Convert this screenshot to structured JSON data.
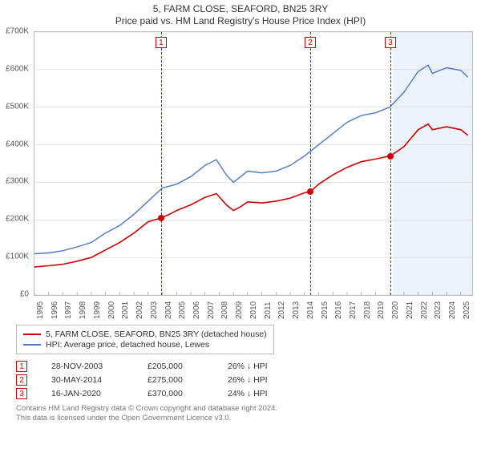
{
  "title1": "5, FARM CLOSE, SEAFORD, BN25 3RY",
  "title2": "Price paid vs. HM Land Registry's House Price Index (HPI)",
  "chart": {
    "type": "line",
    "x_start": 1995,
    "x_end": 2025.8,
    "x_ticks": [
      1995,
      1996,
      1997,
      1998,
      1999,
      2000,
      2001,
      2002,
      2003,
      2004,
      2005,
      2006,
      2007,
      2008,
      2009,
      2010,
      2011,
      2012,
      2013,
      2014,
      2015,
      2016,
      2017,
      2018,
      2019,
      2020,
      2021,
      2022,
      2023,
      2024,
      2025
    ],
    "y_min": 0,
    "y_max": 700000,
    "y_ticks": [
      "£0",
      "£100K",
      "£200K",
      "£300K",
      "£400K",
      "£500K",
      "£600K",
      "£700K"
    ],
    "grid_color": "#cccccc",
    "background": "#ffffff",
    "band": {
      "start": 2020.2,
      "end": 2025.8,
      "color": "rgba(70,130,200,0.10)"
    },
    "markers": [
      {
        "n": "1",
        "x": 2003.91,
        "y": 205000,
        "line_color": "#cc0000"
      },
      {
        "n": "2",
        "x": 2014.41,
        "y": 275000,
        "line_color": "#cc0000"
      },
      {
        "n": "3",
        "x": 2020.04,
        "y": 370000,
        "line_color": "#cc0000"
      }
    ],
    "series": [
      {
        "name": "property",
        "label": "5, FARM CLOSE, SEAFORD, BN25 3RY (detached house)",
        "color": "#cc0000",
        "width": 1.6,
        "points": [
          [
            1995,
            75000
          ],
          [
            1996,
            78000
          ],
          [
            1997,
            82000
          ],
          [
            1998,
            90000
          ],
          [
            1999,
            100000
          ],
          [
            2000,
            120000
          ],
          [
            2001,
            140000
          ],
          [
            2002,
            165000
          ],
          [
            2003,
            195000
          ],
          [
            2003.91,
            205000
          ],
          [
            2004.5,
            215000
          ],
          [
            2005,
            225000
          ],
          [
            2006,
            240000
          ],
          [
            2007,
            260000
          ],
          [
            2007.8,
            270000
          ],
          [
            2008.5,
            240000
          ],
          [
            2009,
            225000
          ],
          [
            2009.5,
            235000
          ],
          [
            2010,
            248000
          ],
          [
            2011,
            245000
          ],
          [
            2012,
            250000
          ],
          [
            2013,
            258000
          ],
          [
            2014,
            272000
          ],
          [
            2014.41,
            275000
          ],
          [
            2015,
            295000
          ],
          [
            2016,
            320000
          ],
          [
            2017,
            340000
          ],
          [
            2018,
            355000
          ],
          [
            2019,
            362000
          ],
          [
            2020,
            370000
          ],
          [
            2020.04,
            370000
          ],
          [
            2021,
            395000
          ],
          [
            2022,
            440000
          ],
          [
            2022.7,
            455000
          ],
          [
            2023,
            440000
          ],
          [
            2024,
            448000
          ],
          [
            2025,
            440000
          ],
          [
            2025.5,
            425000
          ]
        ]
      },
      {
        "name": "hpi",
        "label": "HPI: Average price, detached house, Lewes",
        "color": "#4a78c4",
        "width": 1.4,
        "points": [
          [
            1995,
            110000
          ],
          [
            1996,
            112000
          ],
          [
            1997,
            118000
          ],
          [
            1998,
            128000
          ],
          [
            1999,
            140000
          ],
          [
            2000,
            165000
          ],
          [
            2001,
            185000
          ],
          [
            2002,
            215000
          ],
          [
            2003,
            250000
          ],
          [
            2004,
            285000
          ],
          [
            2005,
            295000
          ],
          [
            2006,
            315000
          ],
          [
            2007,
            345000
          ],
          [
            2007.8,
            360000
          ],
          [
            2008.5,
            320000
          ],
          [
            2009,
            300000
          ],
          [
            2009.5,
            315000
          ],
          [
            2010,
            330000
          ],
          [
            2011,
            325000
          ],
          [
            2012,
            330000
          ],
          [
            2013,
            345000
          ],
          [
            2014,
            370000
          ],
          [
            2015,
            400000
          ],
          [
            2016,
            430000
          ],
          [
            2017,
            460000
          ],
          [
            2018,
            478000
          ],
          [
            2019,
            485000
          ],
          [
            2020,
            500000
          ],
          [
            2021,
            540000
          ],
          [
            2022,
            595000
          ],
          [
            2022.7,
            612000
          ],
          [
            2023,
            590000
          ],
          [
            2024,
            605000
          ],
          [
            2025,
            598000
          ],
          [
            2025.5,
            580000
          ]
        ]
      }
    ]
  },
  "legend": [
    {
      "color": "#cc0000",
      "text": "5, FARM CLOSE, SEAFORD, BN25 3RY (detached house)"
    },
    {
      "color": "#4a78c4",
      "text": "HPI: Average price, detached house, Lewes"
    }
  ],
  "sales": [
    {
      "n": "1",
      "date": "28-NOV-2003",
      "price": "£205,000",
      "diff": "26% ↓ HPI"
    },
    {
      "n": "2",
      "date": "30-MAY-2014",
      "price": "£275,000",
      "diff": "26% ↓ HPI"
    },
    {
      "n": "3",
      "date": "16-JAN-2020",
      "price": "£370,000",
      "diff": "24% ↓ HPI"
    }
  ],
  "footer1": "Contains HM Land Registry data © Crown copyright and database right 2024.",
  "footer2": "This data is licensed under the Open Government Licence v3.0."
}
